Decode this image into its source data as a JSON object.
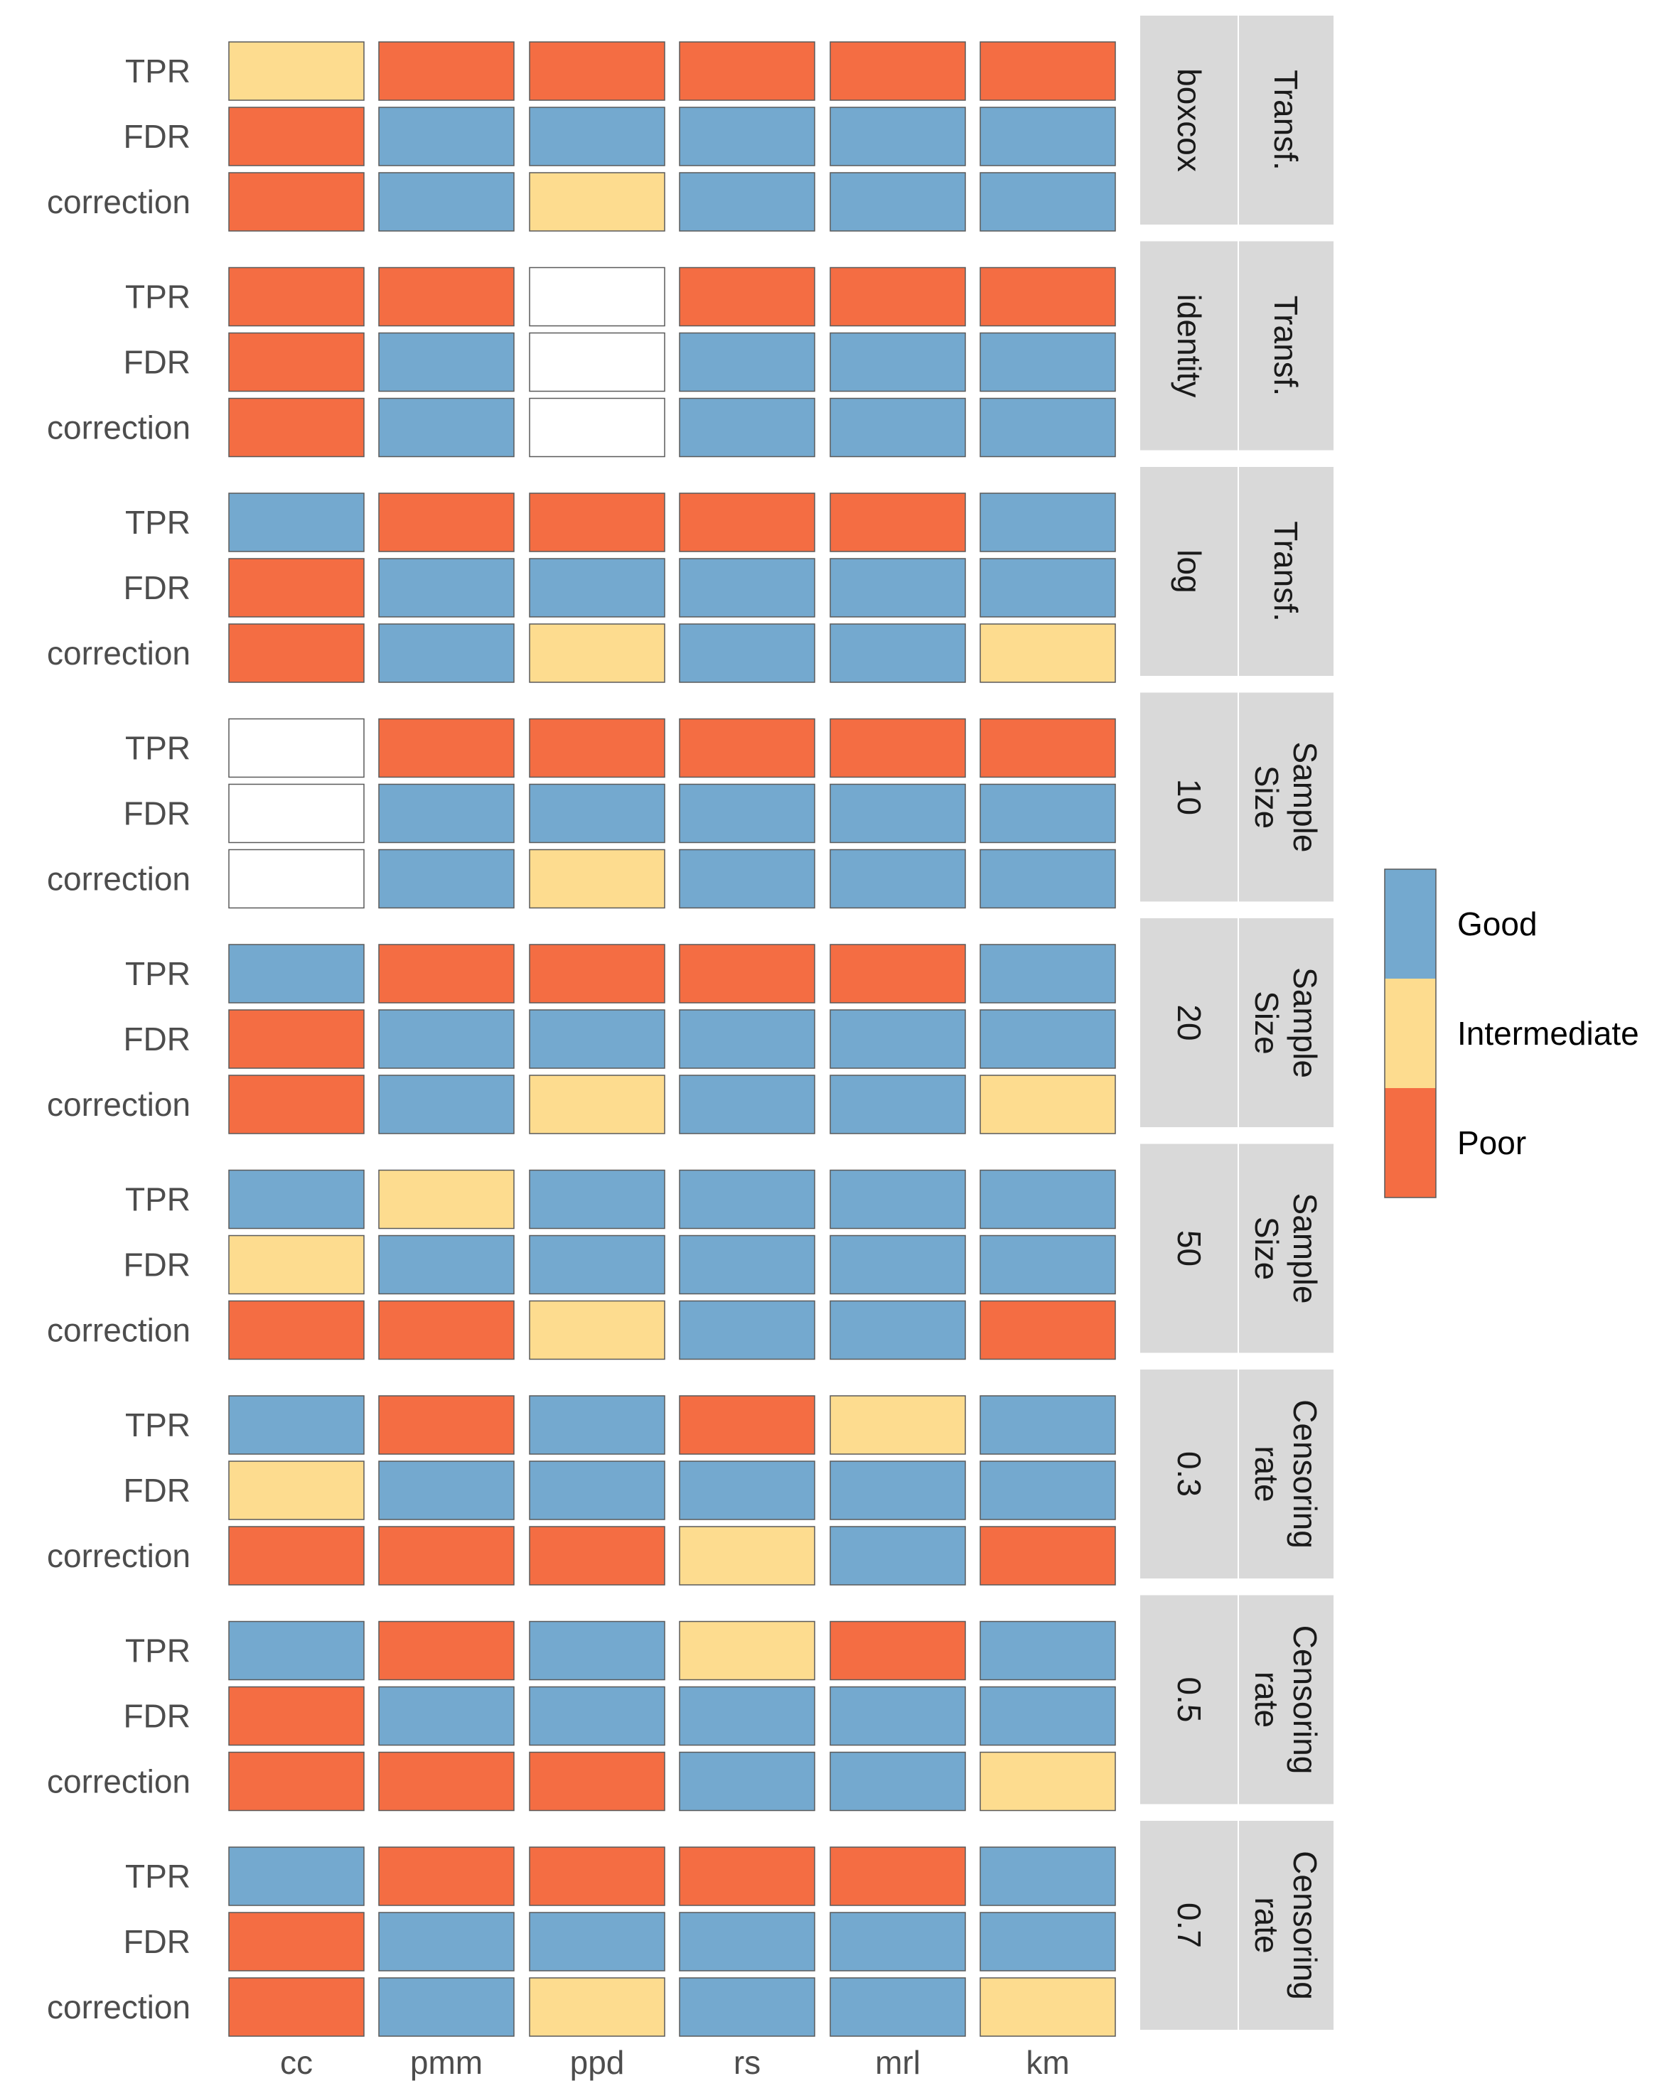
{
  "chart_data": {
    "type": "heatmap",
    "x_categories": [
      "cc",
      "pmm",
      "ppd",
      "rs",
      "mrl",
      "km"
    ],
    "y_categories": [
      "TPR",
      "FDR",
      "correction"
    ],
    "levels": [
      "Good",
      "Intermediate",
      "Poor"
    ],
    "colors": {
      "Good": "#74A9CF",
      "Intermediate": "#FDDC8F",
      "Poor": "#F46D43",
      "missing": "#FFFFFF",
      "strip": "#D9D9D9"
    },
    "legend_position": "right",
    "panels": [
      {
        "facet": "Transf.",
        "value": "boxcox",
        "rows": {
          "TPR": [
            "Intermediate",
            "Poor",
            "Poor",
            "Poor",
            "Poor",
            "Poor"
          ],
          "FDR": [
            "Poor",
            "Good",
            "Good",
            "Good",
            "Good",
            "Good"
          ],
          "correction": [
            "Poor",
            "Good",
            "Intermediate",
            "Good",
            "Good",
            "Good"
          ]
        }
      },
      {
        "facet": "Transf.",
        "value": "identity",
        "rows": {
          "TPR": [
            "Poor",
            "Poor",
            null,
            "Poor",
            "Poor",
            "Poor"
          ],
          "FDR": [
            "Poor",
            "Good",
            null,
            "Good",
            "Good",
            "Good"
          ],
          "correction": [
            "Poor",
            "Good",
            null,
            "Good",
            "Good",
            "Good"
          ]
        }
      },
      {
        "facet": "Transf.",
        "value": "log",
        "rows": {
          "TPR": [
            "Good",
            "Poor",
            "Poor",
            "Poor",
            "Poor",
            "Good"
          ],
          "FDR": [
            "Poor",
            "Good",
            "Good",
            "Good",
            "Good",
            "Good"
          ],
          "correction": [
            "Poor",
            "Good",
            "Intermediate",
            "Good",
            "Good",
            "Intermediate"
          ]
        }
      },
      {
        "facet": "Sample Size",
        "value": "10",
        "rows": {
          "TPR": [
            null,
            "Poor",
            "Poor",
            "Poor",
            "Poor",
            "Poor"
          ],
          "FDR": [
            null,
            "Good",
            "Good",
            "Good",
            "Good",
            "Good"
          ],
          "correction": [
            null,
            "Good",
            "Intermediate",
            "Good",
            "Good",
            "Good"
          ]
        }
      },
      {
        "facet": "Sample Size",
        "value": "20",
        "rows": {
          "TPR": [
            "Good",
            "Poor",
            "Poor",
            "Poor",
            "Poor",
            "Good"
          ],
          "FDR": [
            "Poor",
            "Good",
            "Good",
            "Good",
            "Good",
            "Good"
          ],
          "correction": [
            "Poor",
            "Good",
            "Intermediate",
            "Good",
            "Good",
            "Intermediate"
          ]
        }
      },
      {
        "facet": "Sample Size",
        "value": "50",
        "rows": {
          "TPR": [
            "Good",
            "Intermediate",
            "Good",
            "Good",
            "Good",
            "Good"
          ],
          "FDR": [
            "Intermediate",
            "Good",
            "Good",
            "Good",
            "Good",
            "Good"
          ],
          "correction": [
            "Poor",
            "Poor",
            "Intermediate",
            "Good",
            "Good",
            "Poor"
          ]
        }
      },
      {
        "facet": "Censoring rate",
        "value": "0.3",
        "rows": {
          "TPR": [
            "Good",
            "Poor",
            "Good",
            "Poor",
            "Intermediate",
            "Good"
          ],
          "FDR": [
            "Intermediate",
            "Good",
            "Good",
            "Good",
            "Good",
            "Good"
          ],
          "correction": [
            "Poor",
            "Poor",
            "Poor",
            "Intermediate",
            "Good",
            "Poor"
          ]
        }
      },
      {
        "facet": "Censoring rate",
        "value": "0.5",
        "rows": {
          "TPR": [
            "Good",
            "Poor",
            "Good",
            "Intermediate",
            "Poor",
            "Good"
          ],
          "FDR": [
            "Poor",
            "Good",
            "Good",
            "Good",
            "Good",
            "Good"
          ],
          "correction": [
            "Poor",
            "Poor",
            "Poor",
            "Good",
            "Good",
            "Intermediate"
          ]
        }
      },
      {
        "facet": "Censoring rate",
        "value": "0.7",
        "rows": {
          "TPR": [
            "Good",
            "Poor",
            "Poor",
            "Poor",
            "Poor",
            "Good"
          ],
          "FDR": [
            "Poor",
            "Good",
            "Good",
            "Good",
            "Good",
            "Good"
          ],
          "correction": [
            "Poor",
            "Good",
            "Intermediate",
            "Good",
            "Good",
            "Intermediate"
          ]
        }
      }
    ]
  }
}
